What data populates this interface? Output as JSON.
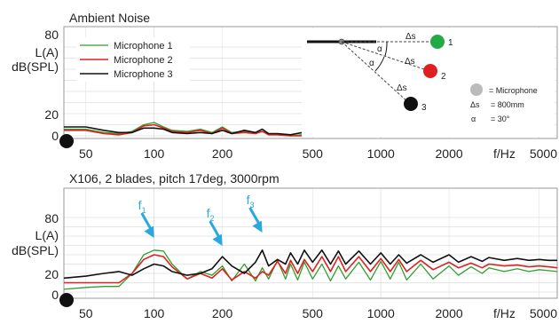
{
  "chart_data": [
    {
      "type": "line",
      "title": "Ambient Noise",
      "ylabel_lines": [
        "L(A)",
        "dB(SPL)"
      ],
      "xlabel": "f/Hz",
      "xscale": "log",
      "xlim": [
        40,
        6000
      ],
      "ylim": [
        0,
        80
      ],
      "y_ticks": [
        0,
        20,
        80
      ],
      "x_ticks": [
        {
          "v": 50,
          "label": "50"
        },
        {
          "v": 100,
          "label": "100"
        },
        {
          "v": 200,
          "label": "200"
        },
        {
          "v": 500,
          "label": "500"
        },
        {
          "v": 1000,
          "label": "1000"
        },
        {
          "v": 2000,
          "label": "2000"
        },
        {
          "v": 5000,
          "label": "5000"
        }
      ],
      "grid": true,
      "legend": "top-left",
      "series": [
        {
          "name": "Microphone 1",
          "color": "#2ea02e",
          "x": [
            40,
            50,
            60,
            70,
            80,
            90,
            100,
            110,
            120,
            140,
            160,
            180,
            200,
            220,
            250,
            280,
            300,
            320,
            350,
            400,
            450,
            480
          ],
          "y": [
            6,
            6,
            3,
            2,
            4,
            10,
            12,
            8,
            5,
            4,
            6,
            3,
            8,
            3,
            4,
            3,
            4,
            2,
            1,
            0,
            1,
            0
          ]
        },
        {
          "name": "Microphone 2",
          "color": "#e02020",
          "x": [
            40,
            50,
            60,
            70,
            80,
            90,
            100,
            110,
            120,
            140,
            160,
            180,
            200,
            220,
            250,
            280,
            300,
            320,
            350,
            400,
            450,
            480
          ],
          "y": [
            5,
            5,
            2,
            1,
            3,
            9,
            10,
            7,
            4,
            3,
            5,
            2,
            7,
            2,
            3,
            2,
            4,
            1,
            1,
            0,
            0,
            0
          ]
        },
        {
          "name": "Microphone 3",
          "color": "#111111",
          "x": [
            40,
            50,
            60,
            70,
            80,
            90,
            100,
            110,
            120,
            140,
            160,
            180,
            200,
            220,
            250,
            280,
            300,
            320,
            350,
            400,
            450,
            480
          ],
          "y": [
            8,
            8,
            5,
            3,
            3,
            7,
            7,
            6,
            3,
            2,
            3,
            2,
            5,
            2,
            5,
            3,
            6,
            2,
            2,
            1,
            3,
            1
          ]
        }
      ]
    },
    {
      "type": "line",
      "title": "X106, 2 blades, pitch 17deg, 3000rpm",
      "ylabel_lines": [
        "L(A)",
        "dB(SPL)"
      ],
      "xlabel": "f/Hz",
      "xscale": "log",
      "xlim": [
        40,
        6000
      ],
      "ylim": [
        0,
        80
      ],
      "y_ticks": [
        0,
        20,
        80
      ],
      "x_ticks": [
        {
          "v": 50,
          "label": "50"
        },
        {
          "v": 100,
          "label": "100"
        },
        {
          "v": 200,
          "label": "200"
        },
        {
          "v": 500,
          "label": "500"
        },
        {
          "v": 1000,
          "label": "1000"
        },
        {
          "v": 2000,
          "label": "2000"
        },
        {
          "v": 5000,
          "label": "5000"
        }
      ],
      "grid": true,
      "annotations": [
        {
          "letter": "f",
          "sub": "1",
          "x": 100,
          "color": "#29a8e0"
        },
        {
          "letter": "f",
          "sub": "2",
          "x": 200,
          "color": "#29a8e0"
        },
        {
          "letter": "f",
          "sub": "3",
          "x": 300,
          "color": "#29a8e0"
        }
      ],
      "series": [
        {
          "name": "Microphone 1",
          "color": "#2ea02e",
          "x": [
            40,
            50,
            60,
            70,
            80,
            90,
            100,
            110,
            120,
            140,
            160,
            180,
            200,
            220,
            250,
            280,
            300,
            320,
            350,
            380,
            400,
            430,
            460,
            500,
            550,
            600,
            650,
            700,
            800,
            900,
            1000,
            1100,
            1200,
            1300,
            1500,
            1700,
            2000,
            2200,
            2500,
            2800,
            3000,
            3500,
            4000,
            4500,
            5000,
            5500,
            6000
          ],
          "y": [
            3,
            5,
            6,
            6,
            20,
            40,
            45,
            44,
            30,
            14,
            22,
            18,
            28,
            12,
            30,
            12,
            26,
            14,
            34,
            14,
            30,
            13,
            32,
            14,
            30,
            12,
            28,
            14,
            32,
            13,
            33,
            14,
            32,
            13,
            30,
            14,
            28,
            18,
            27,
            20,
            26,
            22,
            25,
            22,
            24,
            23,
            22
          ]
        },
        {
          "name": "Microphone 2",
          "color": "#e02020",
          "x": [
            40,
            50,
            60,
            70,
            80,
            90,
            100,
            110,
            120,
            140,
            160,
            180,
            200,
            220,
            250,
            280,
            300,
            320,
            350,
            380,
            400,
            430,
            460,
            500,
            550,
            600,
            650,
            700,
            800,
            900,
            1000,
            1100,
            1200,
            1300,
            1500,
            1700,
            2000,
            2200,
            2500,
            2800,
            3000,
            3500,
            4000,
            4500,
            5000,
            5500,
            6000
          ],
          "y": [
            10,
            10,
            10,
            10,
            20,
            35,
            40,
            38,
            27,
            14,
            20,
            15,
            25,
            13,
            22,
            15,
            22,
            18,
            33,
            20,
            34,
            20,
            35,
            22,
            38,
            22,
            38,
            22,
            38,
            22,
            36,
            22,
            35,
            22,
            34,
            24,
            32,
            26,
            31,
            26,
            30,
            28,
            29,
            27,
            28,
            27,
            26
          ]
        },
        {
          "name": "Microphone 3",
          "color": "#111111",
          "x": [
            40,
            50,
            60,
            70,
            80,
            90,
            100,
            110,
            120,
            140,
            160,
            180,
            200,
            220,
            250,
            280,
            300,
            320,
            350,
            380,
            400,
            430,
            460,
            500,
            550,
            600,
            650,
            700,
            800,
            900,
            1000,
            1100,
            1200,
            1300,
            1500,
            1700,
            2000,
            2200,
            2500,
            2800,
            3000,
            3500,
            4000,
            4500,
            5000,
            5500,
            6000
          ],
          "y": [
            15,
            17,
            20,
            22,
            18,
            25,
            30,
            28,
            22,
            18,
            20,
            25,
            38,
            28,
            20,
            32,
            45,
            28,
            35,
            30,
            42,
            30,
            45,
            32,
            45,
            30,
            44,
            30,
            44,
            30,
            42,
            30,
            40,
            31,
            40,
            32,
            40,
            32,
            38,
            33,
            37,
            34,
            36,
            34,
            35,
            34,
            34
          ]
        }
      ]
    }
  ],
  "inset": {
    "delta_s": "Δs",
    "alpha": "α",
    "mic_labels": [
      "1",
      "2",
      "3"
    ],
    "mic_colors": [
      "#22aa44",
      "#e02020",
      "#111111"
    ],
    "legend_mic": "= Microphone",
    "legend_ds_sym": "Δs",
    "legend_ds_val": "=  800mm",
    "legend_alpha_sym": "α",
    "legend_alpha_val": "=  30°"
  }
}
